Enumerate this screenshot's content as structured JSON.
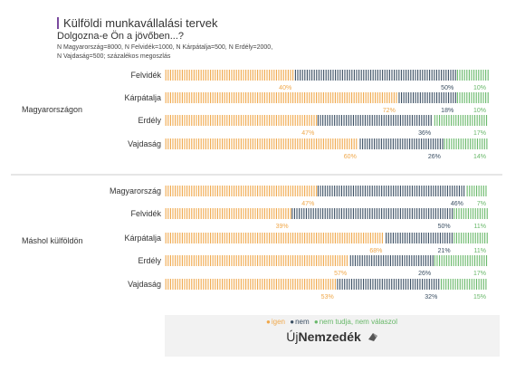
{
  "header": {
    "title": "Külföldi munkavállalási tervek",
    "subtitle": "Dolgozna-e Ön a jövőben...?",
    "note_line1": "N Magyarország=8000, N Felvidék=1000, N Kárpátalja=500, N Erdély=2000,",
    "note_line2": "N Vajdaság=500; százalékos megoszlás"
  },
  "colors": {
    "igen": "#f0a84b",
    "nem": "#3b4f63",
    "nem_tudja": "#69b86a",
    "title_bar": "#7a4a9e"
  },
  "chart_data": {
    "type": "bar",
    "stacked": true,
    "orientation": "horizontal",
    "groups": [
      {
        "label": "Magyarországon",
        "categories": [
          "Felvidék",
          "Kárpátalja",
          "Erdély",
          "Vajdaság"
        ],
        "series": [
          {
            "name": "igen",
            "values": [
              40,
              72,
              47,
              60
            ]
          },
          {
            "name": "nem",
            "values": [
              50,
              18,
              36,
              26
            ]
          },
          {
            "name": "nem tudja, nem válaszol",
            "values": [
              10,
              10,
              17,
              14
            ]
          }
        ]
      },
      {
        "label": "Máshol külföldön",
        "categories": [
          "Magyarország",
          "Felvidék",
          "Kárpátalja",
          "Erdély",
          "Vajdaság"
        ],
        "series": [
          {
            "name": "igen",
            "values": [
              47,
              39,
              68,
              57,
              53
            ]
          },
          {
            "name": "nem",
            "values": [
              46,
              50,
              21,
              26,
              32
            ]
          },
          {
            "name": "nem tudja, nem válaszol",
            "values": [
              7,
              11,
              11,
              17,
              15
            ]
          }
        ]
      }
    ],
    "legend": [
      "igen",
      "nem",
      "nem tudja, nem válaszol"
    ],
    "legend_position": "bottom",
    "xlim": [
      0,
      100
    ]
  },
  "footer": {
    "brand_prefix": "Új",
    "brand_name": "Nemzedék",
    "brand_icon": "brand-logo-icon"
  }
}
